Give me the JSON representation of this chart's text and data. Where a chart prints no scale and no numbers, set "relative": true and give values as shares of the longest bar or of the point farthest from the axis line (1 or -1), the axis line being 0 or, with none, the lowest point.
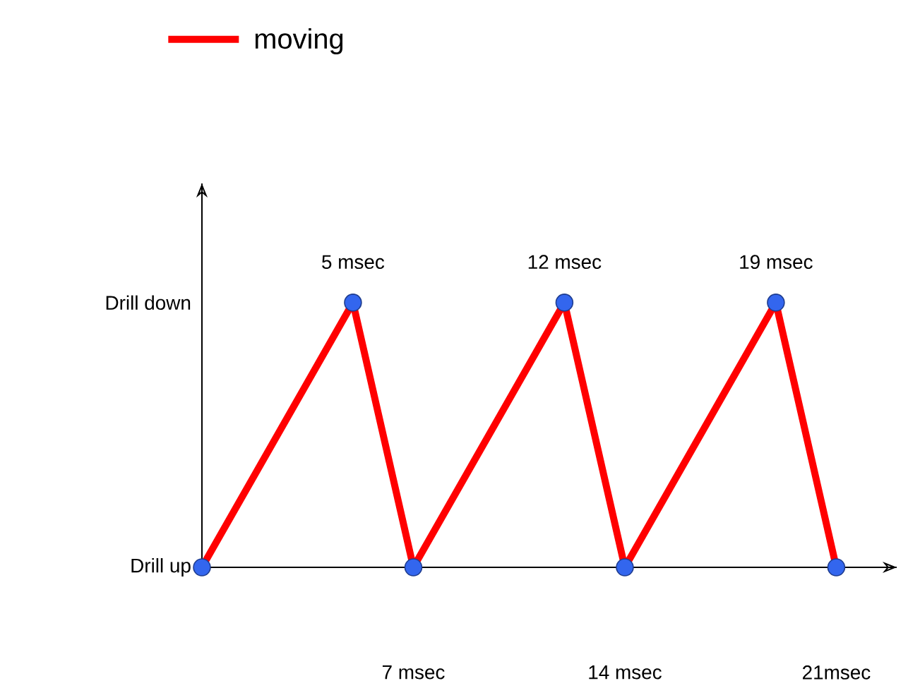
{
  "chart_data": {
    "type": "line",
    "x": [
      0,
      5,
      7,
      12,
      14,
      19,
      21
    ],
    "series": [
      {
        "name": "moving",
        "color": "#ff0000",
        "values": [
          0,
          1,
          0,
          1,
          0,
          1,
          0
        ]
      },
      {
        "type": "scatter",
        "color": "#3366ee",
        "marker": "circle",
        "values": [
          0,
          1,
          0,
          1,
          0,
          1,
          0
        ]
      }
    ],
    "xlim": [
      0,
      23
    ],
    "relative": true,
    "xticks": [
      {
        "value": 7,
        "label": "7 msec"
      },
      {
        "value": 14,
        "label": "14 msec"
      },
      {
        "value": 21,
        "label": "21msec"
      }
    ],
    "legend": "top",
    "annotations": [
      "Drill down",
      "Drill up",
      {
        "text": "5 msec",
        "x": 5,
        "y": 1
      },
      {
        "text": "12 msec",
        "x": 12,
        "y": 1
      },
      {
        "text": "19 msec",
        "x": 19,
        "y": 1
      }
    ]
  }
}
